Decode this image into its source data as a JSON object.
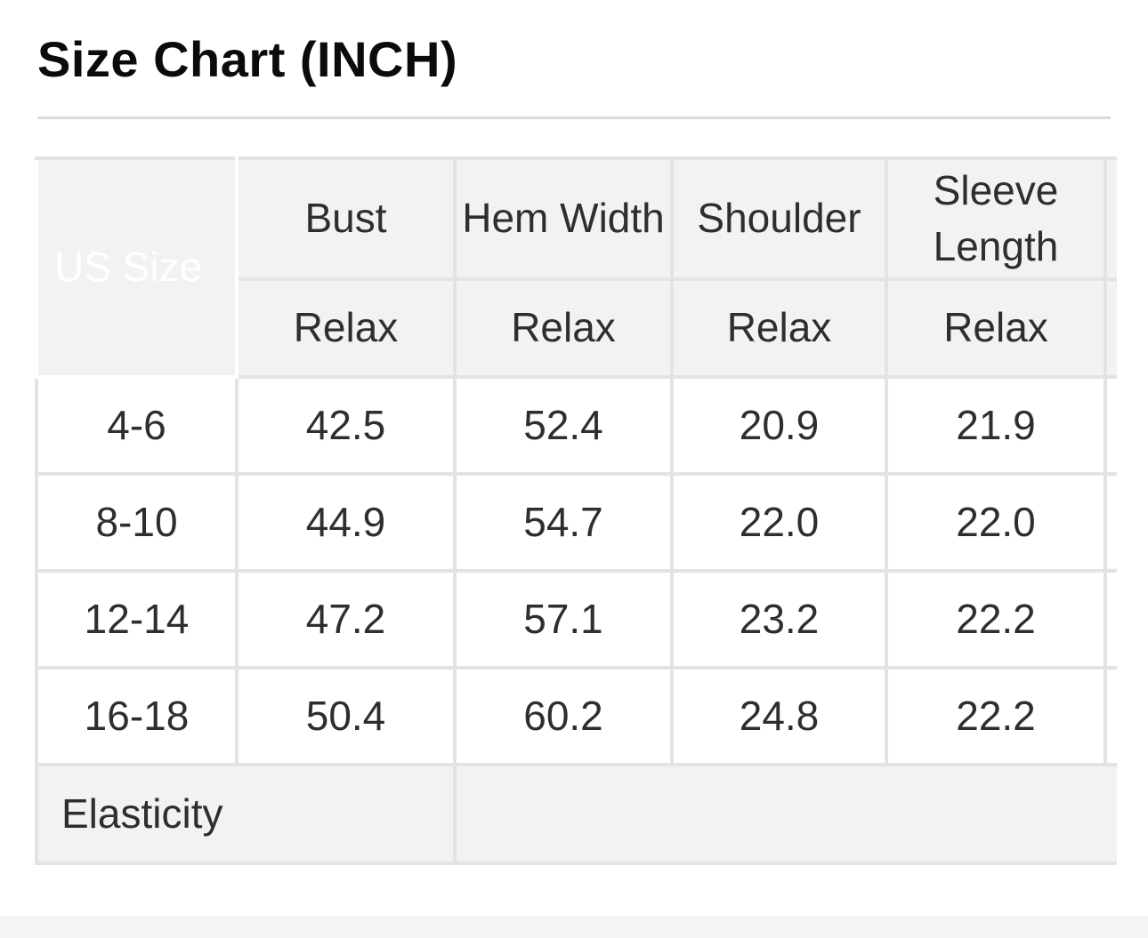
{
  "page": {
    "title": "Size Chart (INCH)"
  },
  "size_chart": {
    "unit": "INCH",
    "corner_header": "US Size",
    "columns": [
      {
        "label": "Bust",
        "fit": "Relax"
      },
      {
        "label": "Hem Width",
        "fit": "Relax"
      },
      {
        "label": "Shoulder",
        "fit": "Relax"
      },
      {
        "label": "Sleeve Length",
        "fit": "Relax"
      }
    ],
    "rows": [
      {
        "size": "4-6",
        "values": [
          "42.5",
          "52.4",
          "20.9",
          "21.9"
        ]
      },
      {
        "size": "8-10",
        "values": [
          "44.9",
          "54.7",
          "22.0",
          "22.0"
        ]
      },
      {
        "size": "12-14",
        "values": [
          "47.2",
          "57.1",
          "23.2",
          "22.2"
        ]
      },
      {
        "size": "16-18",
        "values": [
          "50.4",
          "60.2",
          "24.8",
          "22.2"
        ]
      }
    ],
    "footer_label": "Elasticity"
  },
  "colors": {
    "corner_cell_bg": "#323232",
    "header_cell_bg": "#f2f2f3",
    "border": "#e3e3e3",
    "table_text": "#2e2e2e",
    "bottom_band_bg": "#f3f5f7"
  }
}
